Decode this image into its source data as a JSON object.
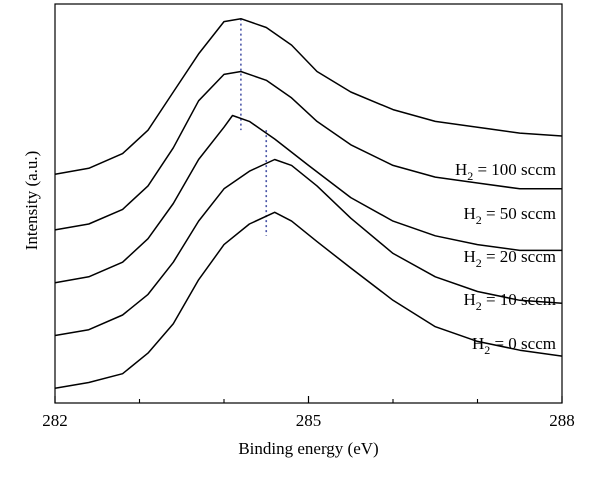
{
  "chart_data": {
    "type": "line",
    "title": "",
    "xlabel": "Binding energy (eV)",
    "ylabel": "Intensity (a.u.)",
    "xlim": [
      282,
      288
    ],
    "x_major_ticks": [
      282,
      285,
      288
    ],
    "x_minor_ticks": [
      283,
      284,
      286,
      287
    ],
    "y_tick_labels": false,
    "grid": false,
    "legend": "none",
    "reference_lines": [
      {
        "x": 284.2,
        "style": "dotted",
        "color": "#4a55a8"
      },
      {
        "x": 284.5,
        "style": "dotted",
        "color": "#4a55a8"
      }
    ],
    "series": [
      {
        "label_prefix": "H",
        "label_sub": "2",
        "label_suffix": " = 0 sccm",
        "x": [
          282.0,
          282.4,
          282.8,
          283.1,
          283.4,
          283.7,
          284.0,
          284.3,
          284.6,
          284.8,
          285.1,
          285.5,
          286.0,
          286.5,
          287.0,
          287.5,
          288.0
        ],
        "y": [
          0.05,
          0.07,
          0.1,
          0.17,
          0.27,
          0.42,
          0.54,
          0.61,
          0.65,
          0.62,
          0.55,
          0.46,
          0.35,
          0.26,
          0.21,
          0.18,
          0.16
        ]
      },
      {
        "label_prefix": "H",
        "label_sub": "2",
        "label_suffix": " = 10 sccm",
        "x": [
          282.0,
          282.4,
          282.8,
          283.1,
          283.4,
          283.7,
          284.0,
          284.3,
          284.6,
          284.8,
          285.1,
          285.5,
          286.0,
          286.5,
          287.0,
          287.5,
          288.0
        ],
        "y": [
          0.23,
          0.25,
          0.3,
          0.37,
          0.48,
          0.62,
          0.73,
          0.79,
          0.83,
          0.81,
          0.74,
          0.63,
          0.51,
          0.43,
          0.38,
          0.35,
          0.34
        ]
      },
      {
        "label_prefix": "H",
        "label_sub": "2",
        "label_suffix": " = 20 sccm",
        "x": [
          282.0,
          282.4,
          282.8,
          283.1,
          283.4,
          283.7,
          284.0,
          284.1,
          284.3,
          284.6,
          285.0,
          285.5,
          286.0,
          286.5,
          287.0,
          287.5,
          288.0
        ],
        "y": [
          0.41,
          0.43,
          0.48,
          0.56,
          0.68,
          0.83,
          0.94,
          0.98,
          0.96,
          0.9,
          0.81,
          0.7,
          0.62,
          0.57,
          0.54,
          0.52,
          0.52
        ]
      },
      {
        "label_prefix": "H",
        "label_sub": "2",
        "label_suffix": " = 50 sccm",
        "x": [
          282.0,
          282.4,
          282.8,
          283.1,
          283.4,
          283.7,
          284.0,
          284.2,
          284.5,
          284.8,
          285.1,
          285.5,
          286.0,
          286.5,
          287.0,
          287.5,
          288.0
        ],
        "y": [
          0.59,
          0.61,
          0.66,
          0.74,
          0.87,
          1.03,
          1.12,
          1.13,
          1.1,
          1.04,
          0.96,
          0.88,
          0.81,
          0.77,
          0.75,
          0.73,
          0.73
        ]
      },
      {
        "label_prefix": "H",
        "label_sub": "2",
        "label_suffix": " = 100 sccm",
        "x": [
          282.0,
          282.4,
          282.8,
          283.1,
          283.4,
          283.7,
          284.0,
          284.2,
          284.5,
          284.8,
          285.1,
          285.5,
          286.0,
          286.5,
          287.0,
          287.5,
          288.0
        ],
        "y": [
          0.78,
          0.8,
          0.85,
          0.93,
          1.06,
          1.19,
          1.3,
          1.31,
          1.28,
          1.22,
          1.13,
          1.06,
          1.0,
          0.96,
          0.94,
          0.92,
          0.91
        ]
      }
    ]
  }
}
